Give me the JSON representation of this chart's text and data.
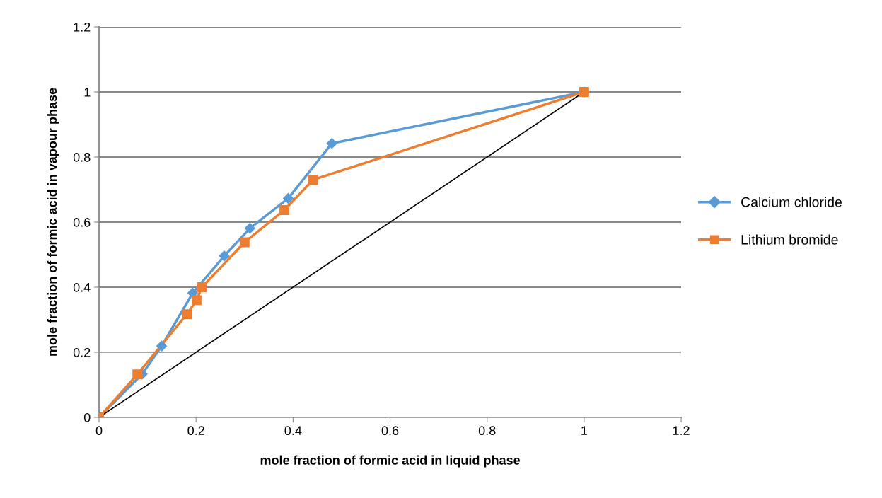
{
  "chart_data": {
    "type": "line",
    "xlabel": "mole fraction of formic acid in liquid phase",
    "ylabel": "mole fraction of formic acid in vapour phase",
    "xlim": [
      0,
      1.2
    ],
    "xticks": [
      0,
      0.2,
      0.4,
      0.6,
      0.8,
      1,
      1.2
    ],
    "ylim": [
      0,
      1.2
    ],
    "yticks": [
      0,
      0.2,
      0.4,
      0.6,
      0.8,
      1,
      1.2
    ],
    "grid": "y",
    "legend": "right",
    "series": [
      {
        "name": "Calcium chloride",
        "color": "#5b9bd5",
        "marker": "diamond",
        "x": [
          0,
          0.089,
          0.129,
          0.193,
          0.258,
          0.311,
          0.39,
          0.48,
          1
        ],
        "values": [
          0,
          0.133,
          0.219,
          0.382,
          0.496,
          0.581,
          0.673,
          0.842,
          1
        ]
      },
      {
        "name": "Lithium bromide",
        "color": "#ed7d31",
        "marker": "square",
        "x": [
          0,
          0.079,
          0.181,
          0.201,
          0.212,
          0.3,
          0.382,
          0.441,
          1
        ],
        "values": [
          0,
          0.132,
          0.317,
          0.36,
          0.4,
          0.538,
          0.637,
          0.73,
          1
        ]
      },
      {
        "color": "#000000",
        "marker": "none",
        "x": [
          0,
          1
        ],
        "values": [
          0,
          1
        ]
      }
    ]
  }
}
